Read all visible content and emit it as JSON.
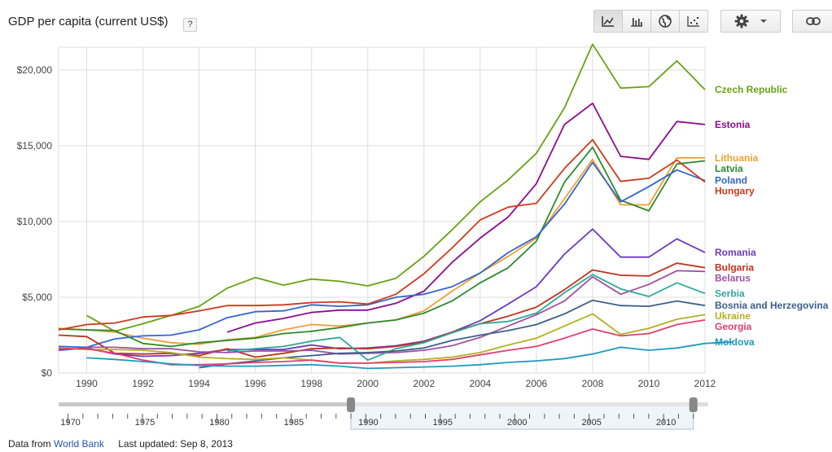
{
  "header": {
    "title": "GDP per capita (current US$)",
    "help": "?"
  },
  "toolbar": {
    "views": [
      {
        "name": "line-chart-icon",
        "active": true
      },
      {
        "name": "bar-chart-icon",
        "active": false
      },
      {
        "name": "map-icon",
        "active": false
      },
      {
        "name": "scatter-chart-icon",
        "active": false
      }
    ],
    "settings": "gear-icon",
    "link": "link-icon"
  },
  "chart_data": {
    "type": "line",
    "title": "GDP per capita (current US$)",
    "xlim": [
      1989,
      2012
    ],
    "ylim": [
      0,
      21500
    ],
    "x_ticks": [
      1990,
      1992,
      1994,
      1996,
      1998,
      2000,
      2002,
      2004,
      2006,
      2008,
      2010,
      2012
    ],
    "y_ticks": [
      {
        "value": 0,
        "label": "$0"
      },
      {
        "value": 5000,
        "label": "$5,000"
      },
      {
        "value": 10000,
        "label": "$10,000"
      },
      {
        "value": 15000,
        "label": "$15,000"
      },
      {
        "value": 20000,
        "label": "$20,000"
      }
    ],
    "grid": true,
    "legend": "right",
    "series": [
      {
        "name": "Czech Republic",
        "color": "#6aa114",
        "start": 1990,
        "values": [
          3800,
          2750,
          3250,
          3800,
          4400,
          5600,
          6300,
          5800,
          6200,
          6050,
          5750,
          6250,
          7700,
          9450,
          11300,
          12750,
          14500,
          17500,
          21700,
          18800,
          18900,
          20600,
          18700
        ]
      },
      {
        "name": "Estonia",
        "color": "#8b0d8b",
        "start": 1995,
        "values": [
          2700,
          3300,
          3600,
          4000,
          4150,
          4150,
          4600,
          5400,
          7300,
          8900,
          10300,
          12500,
          16400,
          17800,
          14300,
          14100,
          16600,
          16400
        ]
      },
      {
        "name": "Lithuania",
        "color": "#f0a030",
        "start": 1989,
        "values": [
          2950,
          2850,
          2700,
          2300,
          2000,
          1900,
          2200,
          2350,
          2850,
          3200,
          3100,
          3300,
          3500,
          4100,
          5400,
          6600,
          7700,
          8900,
          11500,
          14100,
          11100,
          11100,
          14200,
          14200
        ]
      },
      {
        "name": "Latvia",
        "color": "#2d8a2d",
        "start": 1989,
        "values": [
          2900,
          2850,
          2800,
          1950,
          1750,
          2000,
          2150,
          2300,
          2600,
          2750,
          3000,
          3300,
          3500,
          3950,
          4750,
          5950,
          6950,
          8700,
          12600,
          14900,
          11400,
          10700,
          13800,
          14000
        ]
      },
      {
        "name": "Poland",
        "color": "#3366cc",
        "start": 1989,
        "values": [
          1750,
          1700,
          2250,
          2450,
          2500,
          2850,
          3650,
          4050,
          4100,
          4500,
          4400,
          4500,
          5000,
          5200,
          5700,
          6600,
          7950,
          9000,
          11150,
          13900,
          11300,
          12300,
          13400,
          12700
        ]
      },
      {
        "name": "Hungary",
        "color": "#cc3a1c",
        "start": 1989,
        "values": [
          2850,
          3200,
          3300,
          3700,
          3800,
          4100,
          4450,
          4450,
          4500,
          4650,
          4700,
          4550,
          5200,
          6550,
          8250,
          10100,
          10950,
          11200,
          13500,
          15400,
          12650,
          12850,
          14050,
          12600
        ]
      },
      {
        "name": "Romania",
        "color": "#6a3bc0",
        "start": 1989,
        "values": [
          1500,
          1650,
          1250,
          1100,
          1150,
          1300,
          1550,
          1550,
          1550,
          1850,
          1600,
          1650,
          1800,
          2100,
          2700,
          3450,
          4550,
          5700,
          7850,
          9500,
          7650,
          7650,
          8850,
          7950
        ]
      },
      {
        "name": "Bulgaria",
        "color": "#c0321d",
        "start": 1989,
        "values": [
          2500,
          2400,
          1300,
          1250,
          1300,
          1150,
          1600,
          1050,
          1300,
          1600,
          1650,
          1600,
          1750,
          2050,
          2700,
          3250,
          3750,
          4350,
          5500,
          6800,
          6450,
          6400,
          7250,
          6950
        ]
      },
      {
        "name": "Belarus",
        "color": "#a050a0",
        "start": 1990,
        "values": [
          1700,
          1700,
          1600,
          1600,
          1400,
          1350,
          1450,
          1450,
          1500,
          1250,
          1300,
          1350,
          1500,
          1800,
          2350,
          3100,
          3850,
          4750,
          6350,
          5200,
          5850,
          6750,
          6700
        ]
      },
      {
        "name": "Serbia",
        "color": "#2da89a",
        "start": 1995,
        "values": [
          1450,
          1600,
          1750,
          2100,
          2350,
          850,
          1600,
          2000,
          2650,
          3250,
          3400,
          3950,
          5300,
          6500,
          5550,
          5050,
          5950,
          5250
        ]
      },
      {
        "name": "Bosnia and Herzegovina",
        "color": "#3d5f8a",
        "start": 1994,
        "values": [
          350,
          600,
          800,
          1000,
          1150,
          1300,
          1350,
          1450,
          1650,
          2150,
          2500,
          2800,
          3200,
          3900,
          4800,
          4450,
          4400,
          4750,
          4450
        ]
      },
      {
        "name": "Ukraine",
        "color": "#b3b024",
        "start": 1989,
        "values": [
          1650,
          1550,
          1550,
          1500,
          1350,
          1050,
          950,
          900,
          1000,
          850,
          650,
          650,
          800,
          900,
          1050,
          1350,
          1850,
          2300,
          3100,
          3900,
          2550,
          2950,
          3550,
          3850
        ]
      },
      {
        "name": "Georgia",
        "color": "#de4070",
        "start": 1989,
        "values": [
          1600,
          1600,
          1300,
          850,
          550,
          550,
          600,
          700,
          750,
          850,
          650,
          650,
          700,
          750,
          900,
          1200,
          1500,
          1750,
          2300,
          2900,
          2450,
          2600,
          3200,
          3500
        ]
      },
      {
        "name": "Moldova",
        "color": "#1e9bc0",
        "start": 1990,
        "values": [
          1000,
          900,
          750,
          600,
          500,
          450,
          450,
          500,
          550,
          450,
          300,
          350,
          400,
          450,
          550,
          700,
          800,
          950,
          1250,
          1700,
          1500,
          1650,
          1950,
          2050
        ]
      }
    ]
  },
  "navigator": {
    "labels": [
      1970,
      1975,
      1980,
      1985,
      1990,
      1995,
      2000,
      2005,
      2010
    ],
    "range_start": 1989,
    "range_end": 2012
  },
  "footer": {
    "prefix": "Data from",
    "source": "World Bank",
    "updated": "Last updated: Sep 8, 2013"
  }
}
